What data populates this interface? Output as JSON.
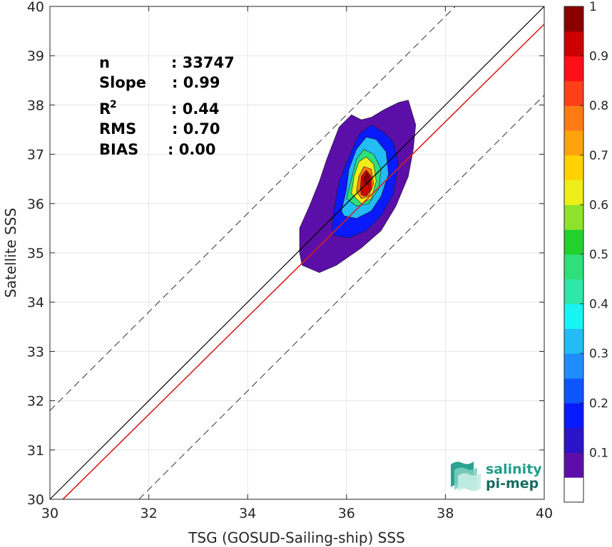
{
  "chart_data": {
    "type": "heatmap",
    "xlabel": "TSG (GOSUD-Sailing-ship) SSS",
    "ylabel": "Satellite SSS",
    "xlim": [
      30,
      40
    ],
    "ylim": [
      30,
      40
    ],
    "xticks": [
      "30",
      "32",
      "34",
      "36",
      "38",
      "40"
    ],
    "yticks": [
      "30",
      "31",
      "32",
      "33",
      "34",
      "35",
      "36",
      "37",
      "38",
      "39",
      "40"
    ],
    "grid": true,
    "stats": {
      "n_label": "n",
      "n_value": ": 33747",
      "slope_label": "Slope",
      "slope_value": ": 0.99",
      "r2_label": "R",
      "r2_sup": "2",
      "r2_value": ": 0.44",
      "rms_label": "RMS",
      "rms_value": ": 0.70",
      "bias_label": "BIAS",
      "bias_value": ": 0.00"
    },
    "lines": {
      "identity": {
        "slope": 1,
        "intercept": 0,
        "color": "#000000"
      },
      "fit": {
        "slope": 0.99,
        "intercept": 0.36,
        "color": "#d62020"
      },
      "offsets": [
        1.8,
        -1.8
      ]
    },
    "contour_levels": [
      0.05,
      0.1,
      0.15,
      0.2,
      0.25,
      0.3,
      0.35,
      0.4,
      0.45,
      0.5,
      0.55,
      0.6,
      0.65,
      0.7,
      0.75,
      0.8,
      0.85,
      0.9,
      0.95
    ],
    "contours": [
      {
        "level": 0.05,
        "points": [
          [
            35.05,
            35.5
          ],
          [
            35.25,
            35.95
          ],
          [
            35.45,
            36.45
          ],
          [
            35.6,
            36.9
          ],
          [
            35.85,
            37.55
          ],
          [
            36.1,
            37.8
          ],
          [
            36.3,
            37.7
          ],
          [
            36.5,
            37.75
          ],
          [
            36.75,
            37.9
          ],
          [
            37.05,
            38.05
          ],
          [
            37.25,
            38.1
          ],
          [
            37.4,
            37.6
          ],
          [
            37.35,
            37.1
          ],
          [
            37.25,
            36.55
          ],
          [
            37.0,
            35.95
          ],
          [
            36.7,
            35.45
          ],
          [
            36.3,
            35.1
          ],
          [
            35.8,
            34.75
          ],
          [
            35.45,
            34.6
          ],
          [
            35.1,
            34.75
          ],
          [
            35.05,
            35.0
          ],
          [
            35.05,
            35.25
          ]
        ]
      },
      {
        "level": 0.15,
        "points": [
          [
            35.7,
            35.5
          ],
          [
            35.75,
            35.9
          ],
          [
            35.85,
            36.45
          ],
          [
            36.05,
            36.95
          ],
          [
            36.25,
            37.4
          ],
          [
            36.5,
            37.6
          ],
          [
            36.75,
            37.45
          ],
          [
            36.95,
            37.25
          ],
          [
            37.05,
            36.8
          ],
          [
            36.95,
            36.2
          ],
          [
            36.7,
            35.75
          ],
          [
            36.4,
            35.45
          ],
          [
            36.05,
            35.3
          ],
          [
            35.75,
            35.35
          ]
        ]
      },
      {
        "level": 0.3,
        "points": [
          [
            35.9,
            35.85
          ],
          [
            36.0,
            36.3
          ],
          [
            36.05,
            36.7
          ],
          [
            36.2,
            37.1
          ],
          [
            36.4,
            37.35
          ],
          [
            36.6,
            37.3
          ],
          [
            36.8,
            37.05
          ],
          [
            36.85,
            36.6
          ],
          [
            36.7,
            36.15
          ],
          [
            36.5,
            35.85
          ],
          [
            36.2,
            35.7
          ],
          [
            35.95,
            35.75
          ]
        ]
      },
      {
        "level": 0.45,
        "points": [
          [
            36.0,
            36.1
          ],
          [
            36.1,
            36.5
          ],
          [
            36.2,
            36.9
          ],
          [
            36.35,
            37.1
          ],
          [
            36.55,
            37.0
          ],
          [
            36.7,
            36.7
          ],
          [
            36.65,
            36.3
          ],
          [
            36.45,
            36.0
          ],
          [
            36.2,
            35.95
          ]
        ]
      },
      {
        "level": 0.6,
        "points": [
          [
            36.1,
            36.2
          ],
          [
            36.15,
            36.55
          ],
          [
            36.25,
            36.85
          ],
          [
            36.4,
            36.95
          ],
          [
            36.55,
            36.8
          ],
          [
            36.6,
            36.45
          ],
          [
            36.5,
            36.1
          ],
          [
            36.3,
            36.0
          ]
        ]
      },
      {
        "level": 0.75,
        "points": [
          [
            36.2,
            36.25
          ],
          [
            36.25,
            36.55
          ],
          [
            36.35,
            36.75
          ],
          [
            36.5,
            36.7
          ],
          [
            36.55,
            36.4
          ],
          [
            36.45,
            36.15
          ],
          [
            36.3,
            36.1
          ]
        ]
      },
      {
        "level": 0.9,
        "points": [
          [
            36.28,
            36.3
          ],
          [
            36.3,
            36.55
          ],
          [
            36.4,
            36.68
          ],
          [
            36.5,
            36.55
          ],
          [
            36.5,
            36.3
          ],
          [
            36.4,
            36.15
          ],
          [
            36.3,
            36.18
          ]
        ]
      },
      {
        "level": 0.98,
        "points": [
          [
            36.35,
            36.5
          ],
          [
            36.42,
            36.62
          ],
          [
            36.48,
            36.5
          ],
          [
            36.44,
            36.38
          ],
          [
            36.38,
            36.4
          ]
        ]
      }
    ],
    "colorbar": {
      "ticks": [
        "0.1",
        "0.2",
        "0.3",
        "0.4",
        "0.5",
        "0.6",
        "0.7",
        "0.8",
        "0.9",
        "1"
      ],
      "colors": [
        "#ffffff",
        "#5b0fa8",
        "#2a13c8",
        "#0a1aff",
        "#0e55ff",
        "#1f8cff",
        "#22bdf5",
        "#16f4f4",
        "#2de8a8",
        "#2ee07a",
        "#22d12e",
        "#8ee32a",
        "#eeee18",
        "#ffd200",
        "#ffa30b",
        "#ff7a13",
        "#ff3f1a",
        "#ff0f18",
        "#cc0000",
        "#8a0000"
      ]
    },
    "logo": {
      "line1": "salinity",
      "line2": "pi-mep"
    }
  }
}
